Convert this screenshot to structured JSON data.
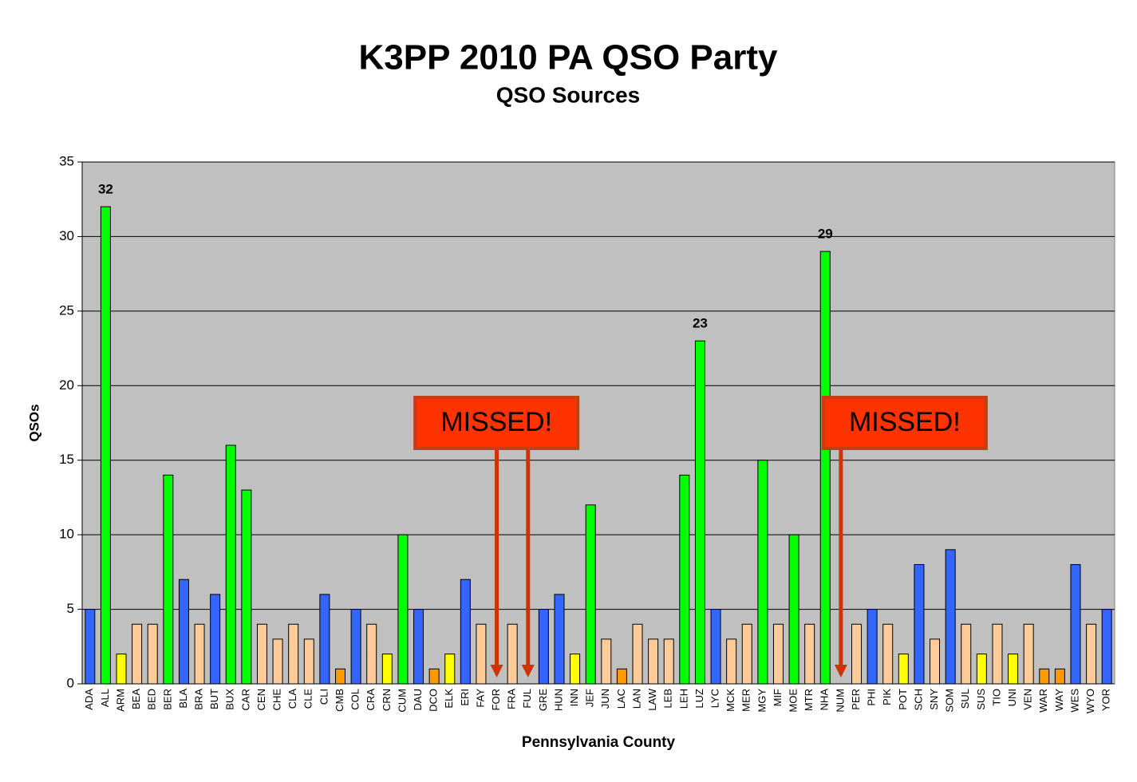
{
  "chart_data": {
    "type": "bar",
    "title": "K3PP 2010 PA QSO Party",
    "subtitle": "QSO Sources",
    "x_label": "Pennsylvania County",
    "y_label": "QSOs",
    "categories": [
      "ADA",
      "ALL",
      "ARM",
      "BEA",
      "BED",
      "BER",
      "BLA",
      "BRA",
      "BUT",
      "BUX",
      "CAR",
      "CEN",
      "CHE",
      "CLA",
      "CLE",
      "CLI",
      "CMB",
      "COL",
      "CRA",
      "CRN",
      "CUM",
      "DAU",
      "DCO",
      "ELK",
      "ERI",
      "FAY",
      "FOR",
      "FRA",
      "FUL",
      "GRE",
      "HUN",
      "INN",
      "JEF",
      "JUN",
      "LAC",
      "LAN",
      "LAW",
      "LEB",
      "LEH",
      "LUZ",
      "LYC",
      "MCK",
      "MER",
      "MGY",
      "MIF",
      "MOE",
      "MTR",
      "NHA",
      "NUM",
      "PER",
      "PHI",
      "PIK",
      "POT",
      "SCH",
      "SNY",
      "SOM",
      "SUL",
      "SUS",
      "TIO",
      "UNI",
      "VEN",
      "WAR",
      "WAY",
      "WES",
      "WYO",
      "YOR"
    ],
    "values": [
      5,
      32,
      2,
      4,
      4,
      14,
      7,
      4,
      6,
      16,
      13,
      4,
      3,
      4,
      3,
      6,
      1,
      5,
      4,
      2,
      10,
      5,
      1,
      2,
      7,
      4,
      0,
      4,
      0,
      5,
      6,
      2,
      12,
      3,
      1,
      4,
      3,
      3,
      14,
      23,
      5,
      3,
      4,
      15,
      4,
      10,
      4,
      29,
      0,
      4,
      5,
      4,
      2,
      8,
      3,
      9,
      4,
      2,
      4,
      2,
      4,
      1,
      1,
      8,
      4,
      5
    ],
    "colors": [
      "#3366ff",
      "#00ff00",
      "#ffff00",
      "#ffcc99",
      "#ffcc99",
      "#00ff00",
      "#3366ff",
      "#ffcc99",
      "#3366ff",
      "#00ff00",
      "#00ff00",
      "#ffcc99",
      "#ffcc99",
      "#ffcc99",
      "#ffcc99",
      "#3366ff",
      "#ff9900",
      "#3366ff",
      "#ffcc99",
      "#ffff00",
      "#00ff00",
      "#3366ff",
      "#ff9900",
      "#ffff00",
      "#3366ff",
      "#ffcc99",
      "#ffcc99",
      "#ffcc99",
      "#ffcc99",
      "#3366ff",
      "#3366ff",
      "#ffff00",
      "#00ff00",
      "#ffcc99",
      "#ff9900",
      "#ffcc99",
      "#ffcc99",
      "#ffcc99",
      "#00ff00",
      "#00ff00",
      "#3366ff",
      "#ffcc99",
      "#ffcc99",
      "#00ff00",
      "#ffcc99",
      "#00ff00",
      "#ffcc99",
      "#00ff00",
      "#ffcc99",
      "#ffcc99",
      "#3366ff",
      "#ffcc99",
      "#ffff00",
      "#3366ff",
      "#ffcc99",
      "#3366ff",
      "#ffcc99",
      "#ffff00",
      "#ffcc99",
      "#ffff00",
      "#ffcc99",
      "#ff9900",
      "#ff9900",
      "#3366ff",
      "#ffcc99",
      "#3366ff"
    ],
    "show_value_label": [
      false,
      true,
      false,
      false,
      false,
      false,
      false,
      false,
      false,
      false,
      false,
      false,
      false,
      false,
      false,
      false,
      false,
      false,
      false,
      false,
      false,
      false,
      false,
      false,
      false,
      false,
      false,
      false,
      false,
      false,
      false,
      false,
      false,
      false,
      false,
      false,
      false,
      false,
      false,
      true,
      false,
      false,
      false,
      false,
      false,
      false,
      false,
      true,
      false,
      false,
      false,
      false,
      false,
      false,
      false,
      false,
      false,
      false,
      false,
      false,
      false,
      false,
      false,
      false,
      false,
      false
    ],
    "ylim": [
      0,
      35
    ],
    "yticks": [
      0,
      5,
      10,
      15,
      20,
      25,
      30,
      35
    ],
    "grid": true,
    "plot_background": "#c0c0c0",
    "annotations": [
      {
        "text": "MISSED!",
        "targets": [
          "FOR",
          "FUL"
        ]
      },
      {
        "text": "MISSED!",
        "targets": [
          "NUM"
        ]
      }
    ]
  }
}
